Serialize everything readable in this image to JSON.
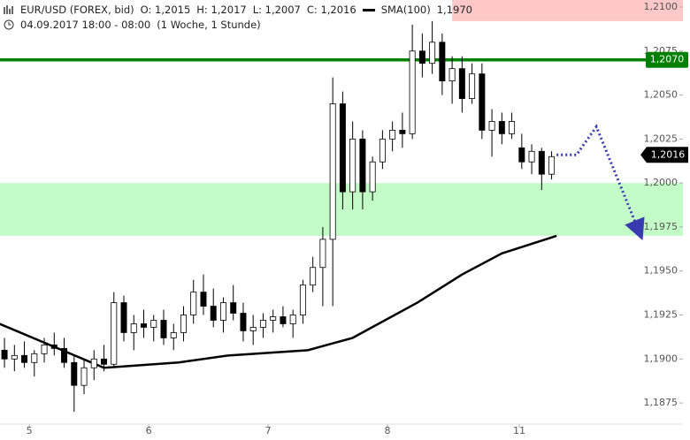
{
  "chart_data": {
    "type": "candlestick",
    "header": {
      "symbol": "EUR/USD (FOREX, bid)",
      "open": "O: 1,2015",
      "high": "H: 1,2017",
      "low": "L: 1,2007",
      "close": "C: 1,2016",
      "sma_label": "SMA(100)",
      "sma_value": "1,1970",
      "period": "04.09.2017 18:00 - 08:00",
      "interval": "(1 Woche, 1 Stunde)"
    },
    "xlim": [
      -5.9,
      131.4
    ],
    "xticks": [
      {
        "value": 0,
        "label": "5"
      },
      {
        "value": 24,
        "label": "6"
      },
      {
        "value": 48,
        "label": "7"
      },
      {
        "value": 72,
        "label": "8"
      },
      {
        "value": 98.5,
        "label": "11"
      }
    ],
    "ylim": [
      1.1863,
      1.2104
    ],
    "yticks": [
      {
        "value": 1.1875,
        "label": "1,1875"
      },
      {
        "value": 1.19,
        "label": "1,1900"
      },
      {
        "value": 1.1925,
        "label": "1,1925"
      },
      {
        "value": 1.195,
        "label": "1,1950"
      },
      {
        "value": 1.1975,
        "label": "1,1975"
      },
      {
        "value": 1.2,
        "label": "1,2000"
      },
      {
        "value": 1.2025,
        "label": "1,2025"
      },
      {
        "value": 1.205,
        "label": "1,2050"
      },
      {
        "value": 1.2075,
        "label": "1,2075"
      },
      {
        "value": 1.21,
        "label": "1,2100"
      }
    ],
    "up_color": "#ffffff",
    "down_color": "#000000",
    "candles": {
      "x": [
        -5,
        -3,
        -1,
        1,
        3,
        5,
        7,
        9,
        11,
        13,
        15,
        17,
        19,
        21,
        23,
        25,
        27,
        29,
        31,
        33,
        35,
        37,
        39,
        41,
        43,
        45,
        47,
        49,
        51,
        53,
        55,
        57,
        59,
        61,
        63,
        65,
        67,
        69,
        71,
        73,
        75,
        77,
        79,
        81,
        83,
        85,
        87,
        89,
        91,
        93,
        95,
        97,
        99,
        101,
        103,
        105
      ],
      "open": [
        1.1905,
        1.19,
        1.1902,
        1.1898,
        1.1903,
        1.1908,
        1.1906,
        1.1898,
        1.1885,
        1.1895,
        1.19,
        1.1897,
        1.1932,
        1.1915,
        1.192,
        1.1918,
        1.1922,
        1.1912,
        1.1915,
        1.1925,
        1.1938,
        1.193,
        1.1922,
        1.1932,
        1.1926,
        1.1916,
        1.1918,
        1.1922,
        1.1924,
        1.192,
        1.1925,
        1.1942,
        1.1952,
        1.1968,
        1.2045,
        1.1995,
        1.2025,
        1.1995,
        1.2012,
        1.2025,
        1.203,
        1.2028,
        1.2075,
        1.2068,
        1.208,
        1.2058,
        1.2065,
        1.2048,
        1.2062,
        1.203,
        1.2035,
        1.2028,
        1.202,
        1.2012,
        1.2018,
        1.2005
      ],
      "high": [
        1.1912,
        1.1908,
        1.191,
        1.1905,
        1.1912,
        1.1915,
        1.1912,
        1.1902,
        1.19,
        1.1905,
        1.1908,
        1.1938,
        1.1936,
        1.1925,
        1.1928,
        1.1925,
        1.1928,
        1.192,
        1.193,
        1.1945,
        1.1948,
        1.194,
        1.1935,
        1.1942,
        1.1932,
        1.1925,
        1.1926,
        1.1928,
        1.193,
        1.1928,
        1.1945,
        1.1958,
        1.1975,
        1.206,
        1.2052,
        1.2035,
        1.203,
        1.2015,
        1.203,
        1.2035,
        1.204,
        1.209,
        1.2085,
        1.2092,
        1.2085,
        1.2072,
        1.2072,
        1.2068,
        1.2068,
        1.2042,
        1.204,
        1.204,
        1.2028,
        1.2022,
        1.202,
        1.2018
      ],
      "low": [
        1.1895,
        1.1893,
        1.1895,
        1.189,
        1.1898,
        1.1902,
        1.1895,
        1.187,
        1.188,
        1.1888,
        1.1893,
        1.1895,
        1.191,
        1.1905,
        1.1912,
        1.191,
        1.1908,
        1.1905,
        1.191,
        1.192,
        1.1925,
        1.1918,
        1.1915,
        1.1922,
        1.191,
        1.1908,
        1.1912,
        1.1915,
        1.1918,
        1.1912,
        1.192,
        1.1938,
        1.193,
        1.193,
        1.1985,
        1.1985,
        1.1985,
        1.199,
        1.2008,
        1.2018,
        1.202,
        1.2025,
        1.206,
        1.2062,
        1.205,
        1.2045,
        1.204,
        1.2045,
        1.2025,
        1.2015,
        1.2022,
        1.2025,
        1.2008,
        1.2005,
        1.1996,
        1.2002
      ],
      "close": [
        1.19,
        1.1902,
        1.1898,
        1.1903,
        1.1908,
        1.1906,
        1.1898,
        1.1885,
        1.1895,
        1.19,
        1.1897,
        1.1932,
        1.1915,
        1.192,
        1.1918,
        1.1922,
        1.1912,
        1.1915,
        1.1925,
        1.1938,
        1.193,
        1.1922,
        1.1932,
        1.1926,
        1.1916,
        1.1918,
        1.1922,
        1.1924,
        1.192,
        1.1925,
        1.1942,
        1.1952,
        1.1968,
        1.2045,
        1.1995,
        1.2025,
        1.1995,
        1.2012,
        1.2025,
        1.203,
        1.2028,
        1.2075,
        1.2068,
        1.208,
        1.2058,
        1.2065,
        1.2048,
        1.2062,
        1.203,
        1.2035,
        1.2028,
        1.2035,
        1.2012,
        1.2018,
        1.2005,
        1.2015
      ]
    },
    "sma": {
      "color": "#000000",
      "x": [
        -6,
        15,
        30,
        40,
        56,
        65,
        78,
        87,
        95,
        106
      ],
      "values": [
        1.192,
        1.1895,
        1.1898,
        1.1902,
        1.1905,
        1.1912,
        1.1932,
        1.1948,
        1.196,
        1.197
      ]
    },
    "forecast": {
      "color": "#3a3ab0",
      "x": [
        106,
        110,
        114,
        122.5
      ],
      "values": [
        1.2016,
        1.2016,
        1.2032,
        1.1973
      ]
    },
    "zones": [
      {
        "from": 1.197,
        "to": 1.2,
        "x_from": -5.9,
        "color": "#c4fcc8"
      },
      {
        "from": 1.2092,
        "to": 1.2104,
        "x_from": 85,
        "color": "#ffc8c8"
      }
    ],
    "level": {
      "value": 1.207,
      "label": "1,2070",
      "color": "#008000"
    },
    "last": {
      "value": 1.2016,
      "label": "1,2016"
    }
  }
}
